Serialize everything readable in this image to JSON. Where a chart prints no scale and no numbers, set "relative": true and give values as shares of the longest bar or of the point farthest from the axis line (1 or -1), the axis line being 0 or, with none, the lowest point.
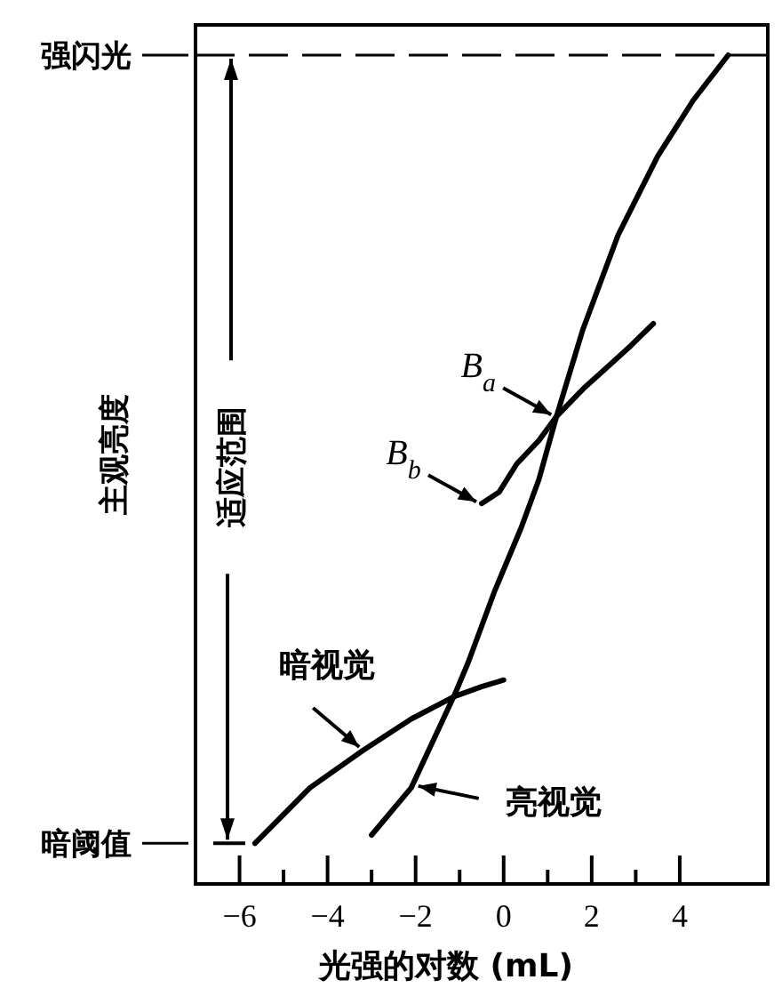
{
  "chart_data": {
    "type": "line",
    "xlabel": "光强的对数 (mL)",
    "ylabel": "主观亮度",
    "relative": true,
    "xlim": [
      -7,
      6
    ],
    "xticks": [
      -6,
      {
        "value": -5,
        "label": null
      },
      -4,
      {
        "value": -3,
        "label": null
      },
      -2,
      {
        "value": -1,
        "label": null
      },
      0,
      {
        "value": 1,
        "label": null
      },
      2,
      {
        "value": 3,
        "label": null
      },
      4
    ],
    "series": [
      {
        "name": "暗视觉",
        "color": "#000000",
        "x": [
          -5.65,
          -4.4,
          -3.2,
          -2.1,
          -1.13,
          -0.5,
          0.0
        ],
        "values": [
          0.049,
          0.116,
          0.161,
          0.199,
          0.226,
          0.238,
          0.246
        ]
      },
      {
        "name": "亮视觉",
        "color": "#000000",
        "x": [
          -3.0,
          -2.1,
          -1.6,
          -1.1,
          -0.8,
          -0.2,
          0.4,
          0.8,
          1.2,
          1.8,
          2.6,
          3.5,
          4.3,
          5.1
        ],
        "values": [
          0.059,
          0.116,
          0.173,
          0.23,
          0.268,
          0.354,
          0.43,
          0.488,
          0.564,
          0.669,
          0.783,
          0.878,
          0.945,
          1.0
        ]
      },
      {
        "color": "#000000",
        "x": [
          -0.5,
          -0.1,
          0.3,
          0.8,
          1.2,
          1.8,
          2.3,
          2.9,
          3.4
        ],
        "values": [
          0.459,
          0.473,
          0.507,
          0.535,
          0.564,
          0.597,
          0.621,
          0.65,
          0.676
        ]
      }
    ],
    "annotations": [
      {
        "text": "B$_{a}$",
        "x": 1.2,
        "y": 0.564
      },
      {
        "text": "B$_{b}$",
        "x": -0.5,
        "y": 0.459
      },
      "适应范围"
    ],
    "ref_lines": [
      {
        "axis": "y",
        "value": 1,
        "label": "强闪光",
        "line_style": "dashed"
      },
      {
        "axis": "y",
        "value": 0.049,
        "label": "暗阈值"
      }
    ]
  }
}
